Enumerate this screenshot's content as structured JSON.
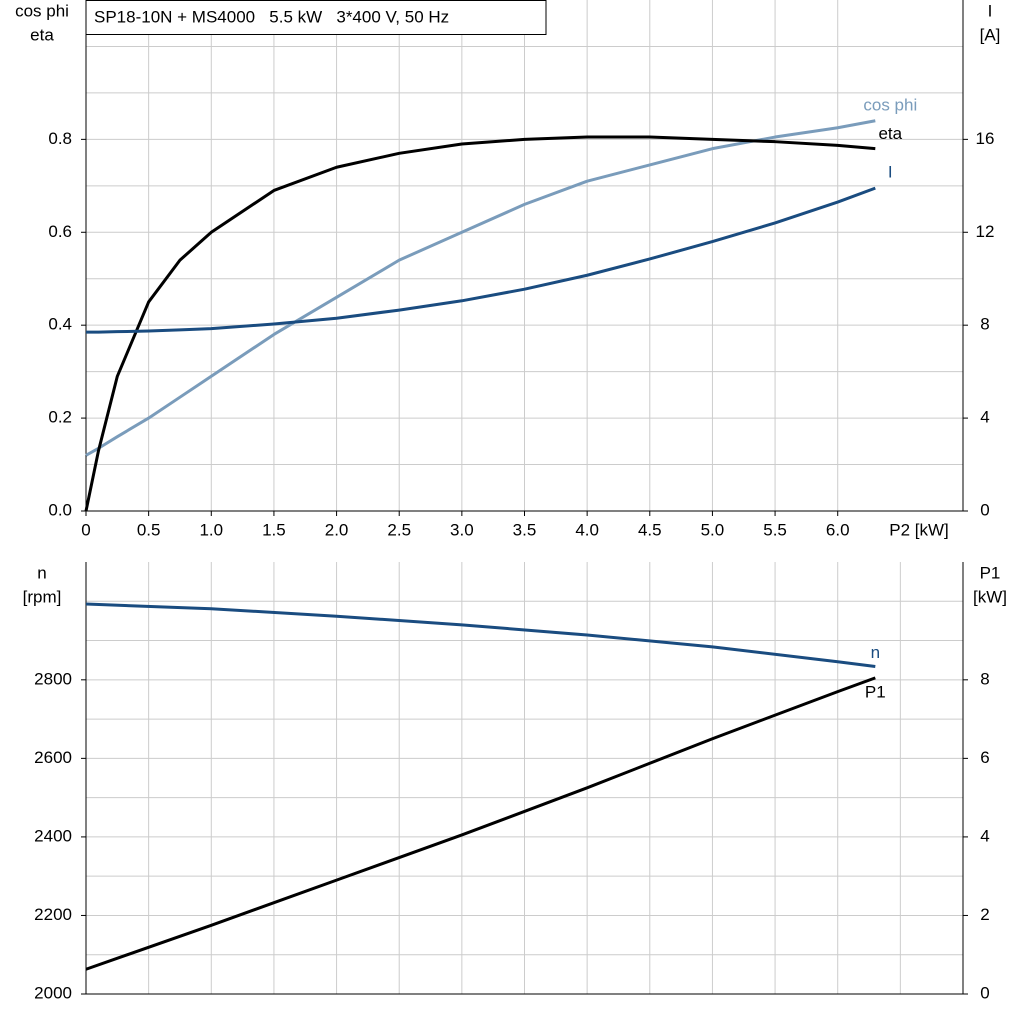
{
  "chart_data": [
    {
      "type": "line",
      "title": "SP18-10N + MS4000   5.5 kW   3*400 V, 50 Hz",
      "xlabel": "P2 [kW]",
      "ylabel": [
        "cos phi",
        "eta"
      ],
      "y2label": [
        "I",
        "[A]"
      ],
      "x": [
        0,
        0.1,
        0.25,
        0.5,
        0.75,
        1,
        1.5,
        2,
        2.5,
        3,
        3.5,
        4,
        4.5,
        5,
        5.5,
        6,
        6.3
      ],
      "xlim": [
        0,
        7
      ],
      "xticks": [
        0,
        0.5,
        {
          "value": 1,
          "label": "1.0"
        },
        1.5,
        {
          "value": 2,
          "label": "2.0"
        },
        2.5,
        {
          "value": 3,
          "label": "3.0"
        },
        3.5,
        {
          "value": 4,
          "label": "4.0"
        },
        4.5,
        {
          "value": 5,
          "label": "5.0"
        },
        5.5,
        {
          "value": 6,
          "label": "6.0"
        }
      ],
      "ylim": [
        0,
        1.1
      ],
      "yticks": [
        {
          "value": 0,
          "label": "0.0"
        },
        0.2,
        0.4,
        0.6,
        0.8
      ],
      "ygrid_minor": [
        0.1,
        0.3,
        0.5,
        0.7,
        0.9,
        1.0
      ],
      "y2lim": [
        0,
        22
      ],
      "y2ticks": [
        0,
        4,
        8,
        12,
        16
      ],
      "grid": true,
      "series": [
        {
          "name": "cos phi",
          "color": "#7a9cbb",
          "values": [
            0.12,
            0.135,
            0.16,
            0.2,
            0.245,
            0.29,
            0.38,
            0.46,
            0.54,
            0.6,
            0.66,
            0.71,
            0.745,
            0.78,
            0.805,
            0.825,
            0.84
          ]
        },
        {
          "name": "eta",
          "color": "#000000",
          "values": [
            0,
            0.13,
            0.29,
            0.45,
            0.54,
            0.6,
            0.69,
            0.74,
            0.77,
            0.79,
            0.8,
            0.805,
            0.805,
            0.8,
            0.795,
            0.787,
            0.78
          ]
        },
        {
          "name": "I",
          "color": "#1a4c80",
          "axis": "y2",
          "values": [
            7.7,
            7.7,
            7.72,
            7.75,
            7.8,
            7.85,
            8.05,
            8.3,
            8.65,
            9.05,
            9.55,
            10.15,
            10.85,
            11.6,
            12.4,
            13.3,
            13.9
          ]
        }
      ]
    },
    {
      "type": "line",
      "ylabel": [
        "n",
        "[rpm]"
      ],
      "y2label": [
        "P1",
        "[kW]"
      ],
      "x": [
        0,
        1,
        2,
        3,
        4,
        5,
        6,
        6.3
      ],
      "xlim": [
        0,
        7
      ],
      "xgrid": [
        0,
        0.5,
        1,
        1.5,
        2,
        2.5,
        3,
        3.5,
        4,
        4.5,
        5,
        5.5,
        6,
        6.5
      ],
      "ylim": [
        2000,
        3100
      ],
      "yticks": [
        2000,
        2200,
        2400,
        2600,
        2800
      ],
      "ygrid_minor": [
        2100,
        2300,
        2500,
        2700,
        2900,
        3000
      ],
      "y2lim": [
        0,
        11
      ],
      "y2ticks": [
        0,
        2,
        4,
        6,
        8
      ],
      "grid": true,
      "series": [
        {
          "name": "n",
          "color": "#1a4c80",
          "values": [
            2993,
            2981,
            2962,
            2940,
            2914,
            2884,
            2846,
            2834
          ]
        },
        {
          "name": "P1",
          "color": "#000000",
          "axis": "y2",
          "values": [
            0.63,
            1.75,
            2.9,
            4.05,
            5.25,
            6.5,
            7.7,
            8.05
          ]
        }
      ]
    }
  ]
}
